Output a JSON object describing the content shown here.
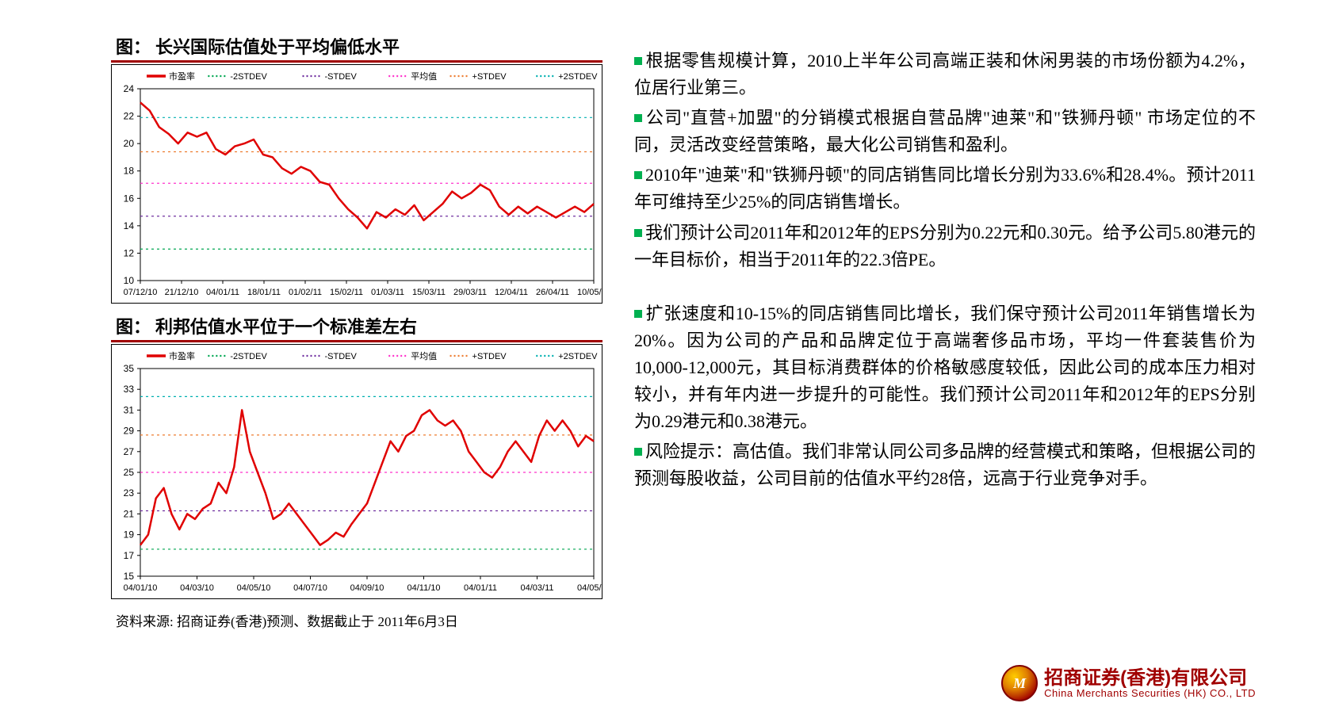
{
  "chart1": {
    "title_prefix": "图：",
    "title": "长兴国际估值处于平均偏低水平",
    "type": "line",
    "legend": [
      {
        "label": "市盈率",
        "color": "#e00000",
        "dash": "solid",
        "width": 2.5
      },
      {
        "label": "-2STDEV",
        "color": "#00a651",
        "dash": "dot",
        "width": 1.2
      },
      {
        "label": "-STDEV",
        "color": "#7030a0",
        "dash": "dot",
        "width": 1.2
      },
      {
        "label": "平均值",
        "color": "#ff33cc",
        "dash": "dot",
        "width": 1.2
      },
      {
        "label": "+STDEV",
        "color": "#ed7d31",
        "dash": "dot",
        "width": 1.2
      },
      {
        "label": "+2STDEV",
        "color": "#00b0b0",
        "dash": "dot",
        "width": 1.2
      }
    ],
    "ylim": [
      10,
      24
    ],
    "ytick_step": 2,
    "x_labels": [
      "07/12/10",
      "21/12/10",
      "04/01/11",
      "18/01/11",
      "01/02/11",
      "15/02/11",
      "01/03/11",
      "15/03/11",
      "29/03/11",
      "12/04/11",
      "26/04/11",
      "10/05/11"
    ],
    "hlines": {
      "-2STDEV": 12.3,
      "-STDEV": 14.7,
      "平均值": 17.1,
      "+STDEV": 19.4,
      "+2STDEV": 21.9
    },
    "series_y": [
      23.0,
      22.4,
      21.2,
      20.7,
      20.0,
      20.8,
      20.5,
      20.8,
      19.6,
      19.2,
      19.8,
      20.0,
      20.3,
      19.2,
      19.0,
      18.2,
      17.8,
      18.3,
      18.0,
      17.2,
      17.0,
      16.0,
      15.2,
      14.6,
      13.8,
      15.0,
      14.6,
      15.2,
      14.8,
      15.5,
      14.4,
      15.0,
      15.6,
      16.5,
      16.0,
      16.4,
      17.0,
      16.6,
      15.4,
      14.8,
      15.4,
      14.9,
      15.4,
      15.0,
      14.6,
      15.0,
      15.4,
      15.0,
      15.6
    ],
    "axis_color": "#000",
    "grid_color": "#d0d0d0",
    "background_color": "#ffffff",
    "font_size": 11
  },
  "chart2": {
    "title_prefix": "图：",
    "title": "利邦估值水平位于一个标准差左右",
    "type": "line",
    "legend": [
      {
        "label": "市盈率",
        "color": "#e00000",
        "dash": "solid",
        "width": 2.5
      },
      {
        "label": "-2STDEV",
        "color": "#00a651",
        "dash": "dot",
        "width": 1.2
      },
      {
        "label": "-STDEV",
        "color": "#7030a0",
        "dash": "dot",
        "width": 1.2
      },
      {
        "label": "平均值",
        "color": "#ff33cc",
        "dash": "dot",
        "width": 1.2
      },
      {
        "label": "+STDEV",
        "color": "#ed7d31",
        "dash": "dot",
        "width": 1.2
      },
      {
        "label": "+2STDEV",
        "color": "#00b0b0",
        "dash": "dot",
        "width": 1.2
      }
    ],
    "ylim": [
      15,
      35
    ],
    "ytick_step": 2,
    "x_labels": [
      "04/01/10",
      "04/03/10",
      "04/05/10",
      "04/07/10",
      "04/09/10",
      "04/11/10",
      "04/01/11",
      "04/03/11",
      "04/05/11"
    ],
    "hlines": {
      "-2STDEV": 17.6,
      "-STDEV": 21.3,
      "平均值": 25.0,
      "+STDEV": 28.6,
      "+2STDEV": 32.3
    },
    "series_y": [
      18.0,
      19.0,
      22.5,
      23.5,
      21.0,
      19.5,
      21.0,
      20.5,
      21.5,
      22.0,
      24.0,
      23.0,
      25.5,
      31.0,
      27.0,
      25.0,
      23.0,
      20.5,
      21.0,
      22.0,
      21.0,
      20.0,
      19.0,
      18.0,
      18.5,
      19.2,
      18.8,
      20.0,
      21.0,
      22.0,
      24.0,
      26.0,
      28.0,
      27.0,
      28.5,
      29.0,
      30.5,
      31.0,
      30.0,
      29.5,
      30.0,
      29.0,
      27.0,
      26.0,
      25.0,
      24.5,
      25.5,
      27.0,
      28.0,
      27.0,
      26.0,
      28.5,
      30.0,
      29.0,
      30.0,
      29.0,
      27.5,
      28.5,
      28.0
    ],
    "axis_color": "#000",
    "grid_color": "#d0d0d0",
    "background_color": "#ffffff",
    "font_size": 11
  },
  "source_line": "资料来源: 招商证券(香港)预测、数据截止于 2011年6月3日",
  "paragraphs_top": [
    "根据零售规模计算，2010上半年公司高端正装和休闲男装的市场份额为4.2%，位居行业第三。",
    "公司\"直营+加盟\"的分销模式根据自营品牌\"迪莱\"和\"铁狮丹顿\" 市场定位的不同，灵活改变经营策略，最大化公司销售和盈利。",
    "2010年\"迪莱\"和\"铁狮丹顿\"的同店销售同比增长分别为33.6%和28.4%。预计2011年可维持至少25%的同店销售增长。",
    "我们预计公司2011年和2012年的EPS分别为0.22元和0.30元。给予公司5.80港元的一年目标价，相当于2011年的22.3倍PE。"
  ],
  "paragraphs_bottom": [
    "扩张速度和10-15%的同店销售同比增长，我们保守预计公司2011年销售增长为20%。因为公司的产品和品牌定位于高端奢侈品市场，平均一件套装售价为10,000-12,000元，其目标消费群体的价格敏感度较低，因此公司的成本压力相对较小，并有年内进一步提升的可能性。我们预计公司2011年和2012年的EPS分别为0.29港元和0.38港元。",
    "风险提示：高估值。我们非常认同公司多品牌的经营模式和策略，但根据公司的预测每股收益，公司目前的估值水平约28倍，远高于行业竞争对手。"
  ],
  "footer": {
    "logo_letter": "M",
    "cn": "招商证券(香港)有限公司",
    "en": "China Merchants Securities (HK) CO., LTD"
  }
}
